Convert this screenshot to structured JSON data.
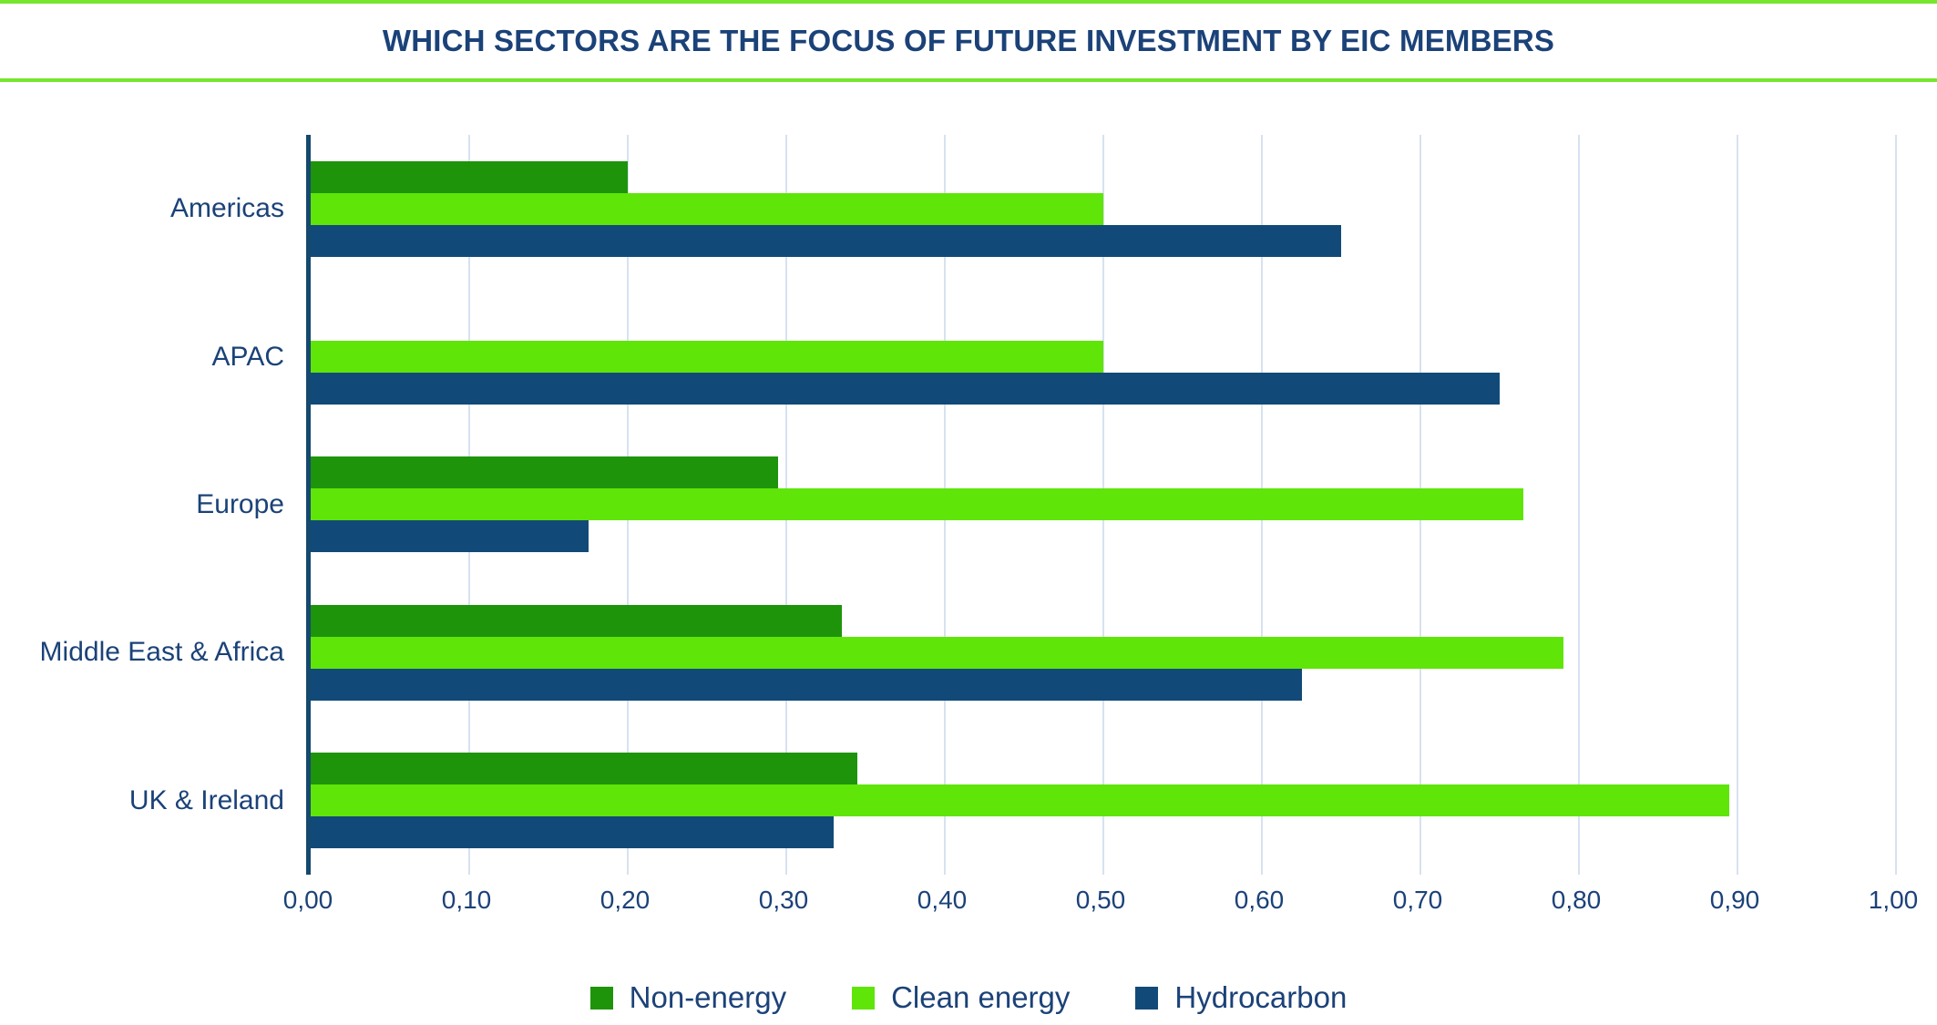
{
  "colors": {
    "background": "#FFFFFF",
    "accent_green": "#76E62E",
    "navy_text": "#1B4278",
    "axis": "#15496E",
    "grid": "#D7E2F0"
  },
  "chart_data": {
    "type": "bar",
    "orientation": "horizontal",
    "title": "WHICH SECTORS ARE THE FOCUS OF FUTURE INVESTMENT BY EIC MEMBERS",
    "xlabel": "",
    "ylabel": "",
    "categories": [
      "Americas",
      "APAC",
      "Europe",
      "Middle East & Africa",
      "UK & Ireland"
    ],
    "series": [
      {
        "name": "Non-energy",
        "color": "#1E940A",
        "values": [
          0.2,
          0.0,
          0.295,
          0.335,
          0.345
        ]
      },
      {
        "name": "Clean energy",
        "color": "#5FE508",
        "values": [
          0.5,
          0.5,
          0.765,
          0.79,
          0.895
        ]
      },
      {
        "name": "Hydrocarbon",
        "color": "#114A78",
        "values": [
          0.65,
          0.75,
          0.175,
          0.625,
          0.33
        ]
      }
    ],
    "xlim": [
      0,
      1
    ],
    "tick_interval": 0.1,
    "x_ticks": [
      "0,00",
      "0,10",
      "0,20",
      "0,30",
      "0,40",
      "0,50",
      "0,60",
      "0,70",
      "0,80",
      "0,90",
      "1,00"
    ],
    "grid": true,
    "legend_position": "bottom"
  }
}
